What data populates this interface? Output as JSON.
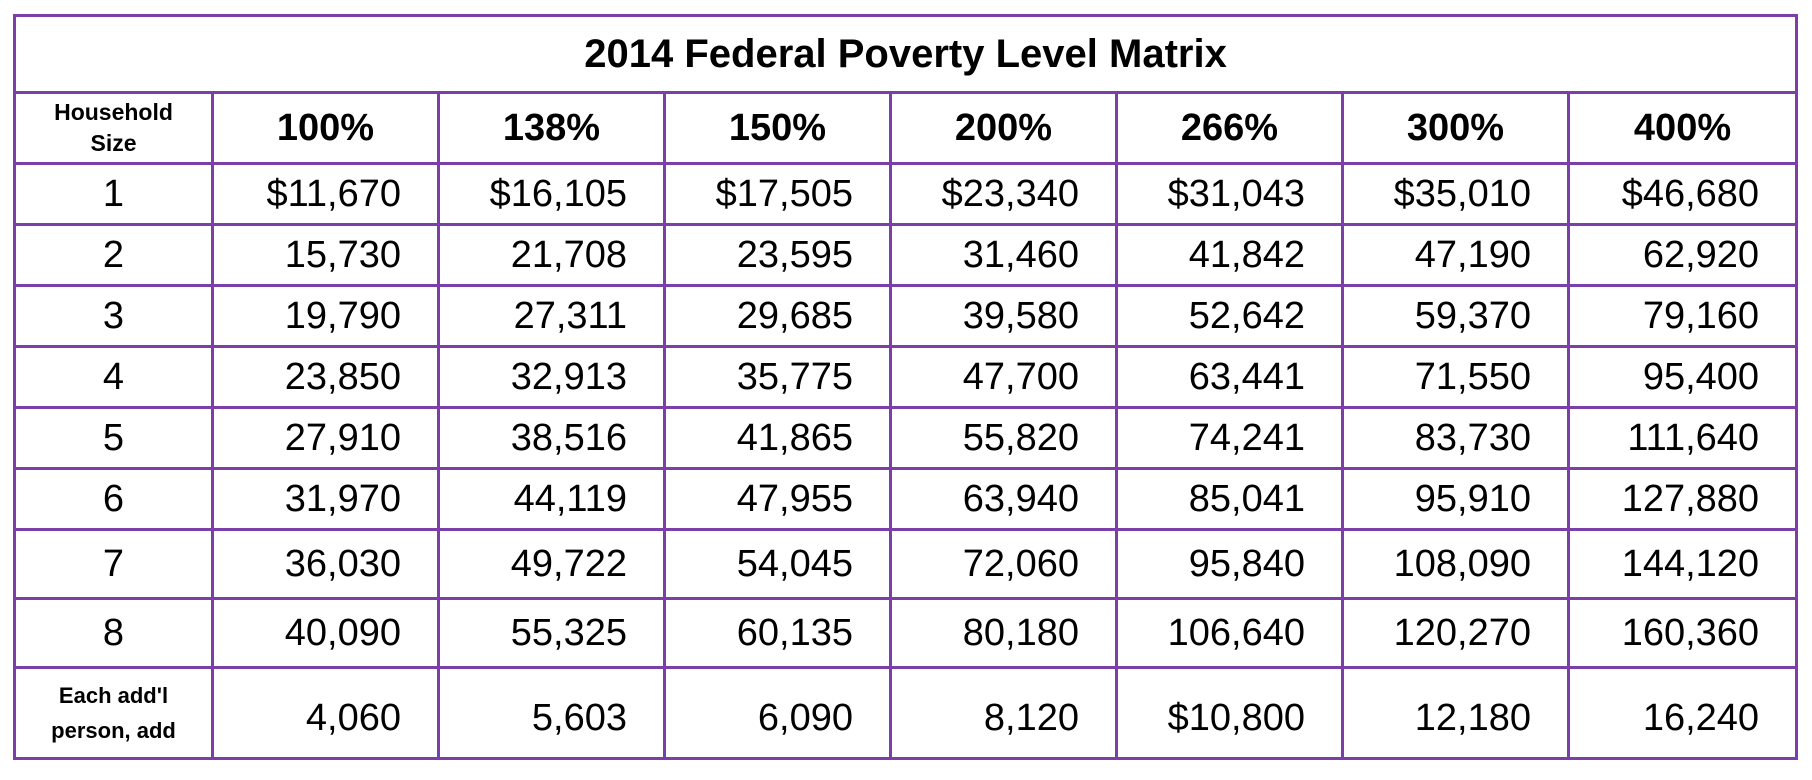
{
  "title": "2014 Federal Poverty Level Matrix",
  "header": {
    "household_label_line1": "Household",
    "household_label_line2": "Size",
    "percentages": [
      "100%",
      "138%",
      "150%",
      "200%",
      "266%",
      "300%",
      "400%"
    ]
  },
  "rows": [
    {
      "size": "1",
      "values": [
        "$11,670",
        "$16,105",
        "$17,505",
        "$23,340",
        "$31,043",
        "$35,010",
        "$46,680"
      ]
    },
    {
      "size": "2",
      "values": [
        "15,730",
        "21,708",
        "23,595",
        "31,460",
        "41,842",
        "47,190",
        "62,920"
      ]
    },
    {
      "size": "3",
      "values": [
        "19,790",
        "27,311",
        "29,685",
        "39,580",
        "52,642",
        "59,370",
        "79,160"
      ]
    },
    {
      "size": "4",
      "values": [
        "23,850",
        "32,913",
        "35,775",
        "47,700",
        "63,441",
        "71,550",
        "95,400"
      ]
    },
    {
      "size": "5",
      "values": [
        "27,910",
        "38,516",
        "41,865",
        "55,820",
        "74,241",
        "83,730",
        "111,640"
      ]
    },
    {
      "size": "6",
      "values": [
        "31,970",
        "44,119",
        "47,955",
        "63,940",
        "85,041",
        "95,910",
        "127,880"
      ]
    },
    {
      "size": "7",
      "values": [
        "36,030",
        "49,722",
        "54,045",
        "72,060",
        "95,840",
        "108,090",
        "144,120"
      ]
    },
    {
      "size": "8",
      "values": [
        "40,090",
        "55,325",
        "60,135",
        "80,180",
        "106,640",
        "120,270",
        "160,360"
      ]
    }
  ],
  "additional": {
    "label_line1": "Each add'l",
    "label_line2": "person, add",
    "values": [
      "4,060",
      "5,603",
      "6,090",
      "8,120",
      "$10,800",
      "12,180",
      "16,240"
    ]
  }
}
